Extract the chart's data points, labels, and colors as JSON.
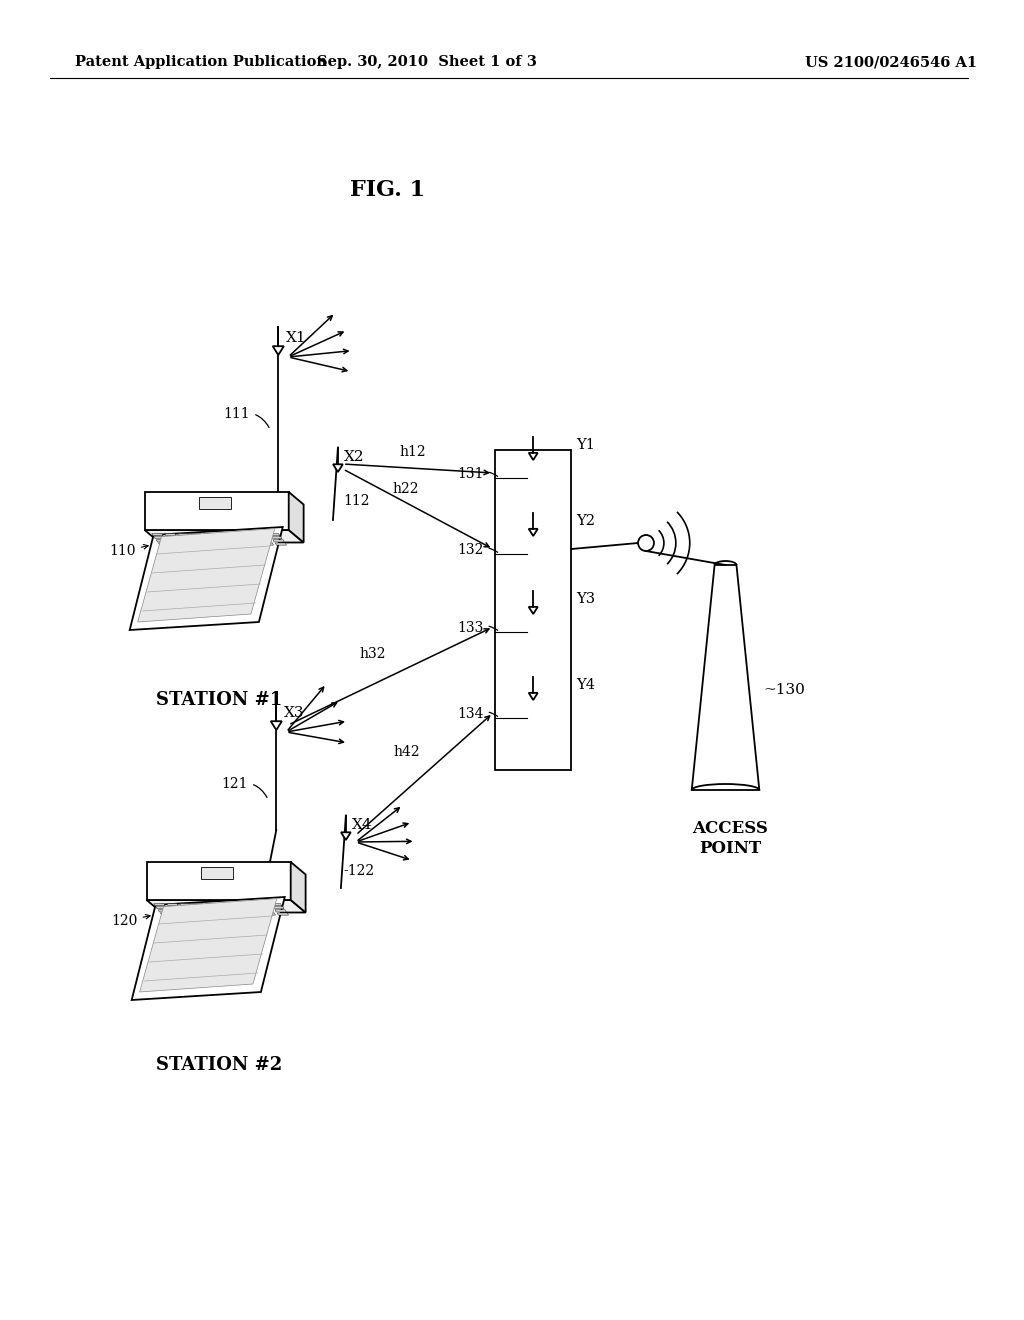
{
  "bg_color": "#ffffff",
  "text_color": "#000000",
  "header_left": "Patent Application Publication",
  "header_center": "Sep. 30, 2010  Sheet 1 of 3",
  "header_right": "US 2100/0246546 A1",
  "fig_label": "FIG. 1",
  "station1_label": "STATION #1",
  "station2_label": "STATION #2",
  "access_point_label": "ACCESS\nPOINT",
  "lw": 1.3
}
